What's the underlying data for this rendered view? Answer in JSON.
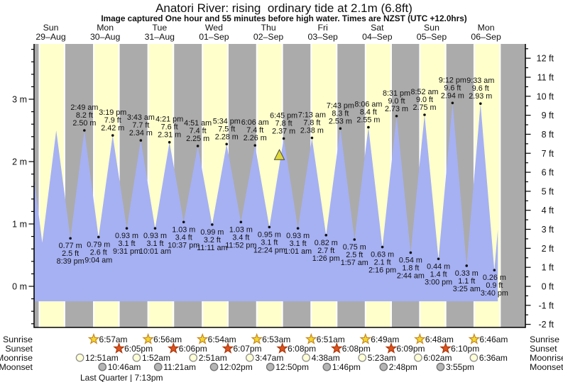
{
  "title": "Anatori River: rising  ordinary tide at 2.1m (6.8ft)",
  "subtitle": "Image captured One hour and 55 minutes before high water. Times are NZST (UTC +12.0hrs)",
  "moon_phase": "Last Quarter | 7:13pm",
  "colors": {
    "night_band": "#ababab",
    "day_band": "#ffffcc",
    "tide_fill": "#a6b1f3",
    "date_red": "#ff3333",
    "sunrise_star": "#f2d832",
    "sunrise_star_edge": "#c8881e",
    "sunset_star": "#e2511a",
    "sunset_star_edge": "#a83a10",
    "moonrise_fill": "#ffffd6",
    "moonrise_edge": "#8f8f8f",
    "moonset_fill": "#b5b5b5",
    "moonset_edge": "#6f6f6f",
    "marker_yellow": "#e0d838"
  },
  "y_axis": {
    "left_ticks": [
      {
        "value": 3,
        "label": "3 m"
      },
      {
        "value": 2,
        "label": "2 m"
      },
      {
        "value": 1,
        "label": "1 m"
      },
      {
        "value": 0,
        "label": "0 m"
      }
    ],
    "right_ticks": [
      {
        "value": 12,
        "label": "12 ft"
      },
      {
        "value": 11,
        "label": "11 ft"
      },
      {
        "value": 10,
        "label": "10 ft"
      },
      {
        "value": 9,
        "label": "9 ft"
      },
      {
        "value": 8,
        "label": "8 ft"
      },
      {
        "value": 7,
        "label": "7 ft"
      },
      {
        "value": 6,
        "label": "6 ft"
      },
      {
        "value": 5,
        "label": "5 ft"
      },
      {
        "value": 4,
        "label": "4 ft"
      },
      {
        "value": 3,
        "label": "3 ft"
      },
      {
        "value": 2,
        "label": "2 ft"
      },
      {
        "value": 1,
        "label": "1 ft"
      },
      {
        "value": 0,
        "label": "0 ft"
      },
      {
        "value": -1,
        "label": "-1 ft"
      },
      {
        "value": -2,
        "label": "-2 ft"
      }
    ]
  },
  "chart_data": {
    "type": "area",
    "x_days": [
      {
        "name": "Sun",
        "date": "29–Aug"
      },
      {
        "name": "Mon",
        "date": "30–Aug"
      },
      {
        "name": "Tue",
        "date": "31–Aug"
      },
      {
        "name": "Wed",
        "date": "01–Sep"
      },
      {
        "name": "Thu",
        "date": "02–Sep"
      },
      {
        "name": "Fri",
        "date": "03–Sep"
      },
      {
        "name": "Sat",
        "date": "04–Sep"
      },
      {
        "name": "Sun",
        "date": "05–Sep"
      },
      {
        "name": "Mon",
        "date": "06–Sep"
      }
    ],
    "y_range_m": [
      -0.65,
      3.9
    ],
    "area_base_m": -0.24,
    "tide_events": [
      {
        "day": 0,
        "time": "4:38 am",
        "height_m": 1.74,
        "type": "edge",
        "labeled": false
      },
      {
        "day": 0,
        "time": "8:14 am",
        "height_m": 0.7,
        "type": "low",
        "labeled": false
      },
      {
        "day": 0,
        "time": "2:24 pm",
        "height_m": 2.5,
        "type": "high",
        "labeled": false
      },
      {
        "day": 0,
        "time": "8:39 pm",
        "height_m": 0.77,
        "height_ft": 2.5,
        "type": "low",
        "labeled": true
      },
      {
        "day": 1,
        "time": "2:49 am",
        "height_m": 2.5,
        "height_ft": 8.2,
        "type": "high",
        "labeled": true
      },
      {
        "day": 1,
        "time": "9:04 am",
        "height_m": 0.79,
        "height_ft": 2.6,
        "type": "low",
        "labeled": true
      },
      {
        "day": 1,
        "time": "3:19 pm",
        "height_m": 2.42,
        "height_ft": 7.9,
        "type": "high",
        "labeled": true
      },
      {
        "day": 1,
        "time": "9:31 pm",
        "height_m": 0.93,
        "height_ft": 3.1,
        "type": "low",
        "labeled": true
      },
      {
        "day": 2,
        "time": "3:43 am",
        "height_m": 2.34,
        "height_ft": 7.7,
        "type": "high",
        "labeled": true
      },
      {
        "day": 2,
        "time": "10:01 am",
        "height_m": 0.93,
        "height_ft": 3.1,
        "type": "low",
        "labeled": true
      },
      {
        "day": 2,
        "time": "4:21 pm",
        "height_m": 2.31,
        "height_ft": 7.6,
        "type": "high",
        "labeled": true
      },
      {
        "day": 2,
        "time": "10:37 pm",
        "height_m": 1.03,
        "height_ft": 3.4,
        "type": "low",
        "labeled": true
      },
      {
        "day": 3,
        "time": "4:51 am",
        "height_m": 2.25,
        "height_ft": 7.4,
        "type": "high",
        "labeled": true
      },
      {
        "day": 3,
        "time": "11:11 am",
        "height_m": 0.99,
        "height_ft": 3.2,
        "type": "low",
        "labeled": true
      },
      {
        "day": 3,
        "time": "5:34 pm",
        "height_m": 2.28,
        "height_ft": 7.5,
        "type": "high",
        "labeled": true
      },
      {
        "day": 3,
        "time": "11:52 pm",
        "height_m": 1.03,
        "height_ft": 3.4,
        "type": "low",
        "labeled": true
      },
      {
        "day": 4,
        "time": "6:06 am",
        "height_m": 2.26,
        "height_ft": 7.4,
        "type": "high",
        "labeled": true
      },
      {
        "day": 4,
        "time": "12:24 pm",
        "height_m": 0.95,
        "height_ft": 3.1,
        "type": "low",
        "labeled": true
      },
      {
        "day": 4,
        "time": "6:45 pm",
        "height_m": 2.37,
        "height_ft": 7.8,
        "type": "high",
        "labeled": true
      },
      {
        "day": 5,
        "time": "1:01 am",
        "height_m": 0.93,
        "height_ft": 3.1,
        "type": "low",
        "labeled": true
      },
      {
        "day": 5,
        "time": "7:13 am",
        "height_m": 2.38,
        "height_ft": 7.8,
        "type": "high",
        "labeled": true
      },
      {
        "day": 5,
        "time": "1:26 pm",
        "height_m": 0.82,
        "height_ft": 2.7,
        "type": "low",
        "labeled": true
      },
      {
        "day": 5,
        "time": "7:43 pm",
        "height_m": 2.53,
        "height_ft": 8.3,
        "type": "high",
        "labeled": true
      },
      {
        "day": 6,
        "time": "1:57 am",
        "height_m": 0.75,
        "height_ft": 2.5,
        "type": "low",
        "labeled": true
      },
      {
        "day": 6,
        "time": "8:06 am",
        "height_m": 2.55,
        "height_ft": 8.4,
        "type": "high",
        "labeled": true
      },
      {
        "day": 6,
        "time": "2:16 pm",
        "height_m": 0.63,
        "height_ft": 2.1,
        "type": "low",
        "labeled": true
      },
      {
        "day": 6,
        "time": "8:31 pm",
        "height_m": 2.73,
        "height_ft": 9.0,
        "type": "high",
        "labeled": true
      },
      {
        "day": 7,
        "time": "2:44 am",
        "height_m": 0.54,
        "height_ft": 1.8,
        "type": "low",
        "labeled": true
      },
      {
        "day": 7,
        "time": "8:52 am",
        "height_m": 2.75,
        "height_ft": 9.0,
        "type": "high",
        "labeled": true
      },
      {
        "day": 7,
        "time": "3:00 pm",
        "height_m": 0.44,
        "height_ft": 1.4,
        "type": "low",
        "labeled": true
      },
      {
        "day": 7,
        "time": "9:12 pm",
        "height_m": 2.94,
        "height_ft": 9.6,
        "type": "high",
        "labeled": true
      },
      {
        "day": 8,
        "time": "3:25 am",
        "height_m": 0.33,
        "height_ft": 1.1,
        "type": "low",
        "labeled": true
      },
      {
        "day": 8,
        "time": "9:33 am",
        "height_m": 2.93,
        "height_ft": 9.6,
        "type": "high",
        "labeled": true
      },
      {
        "day": 8,
        "time": "3:40 pm",
        "height_m": 0.26,
        "height_ft": 0.9,
        "type": "low",
        "labeled": true
      },
      {
        "day": 8,
        "time": "5:12 pm",
        "height_m": 0.91,
        "type": "edge",
        "labeled": false
      }
    ],
    "current_time_marker": {
      "day": 4,
      "time": "4:50 pm",
      "height_m": 2.1
    }
  },
  "astro": {
    "rows": [
      {
        "name": "Sunrise",
        "icon": "sunrise-star",
        "entries": [
          {
            "day": 1,
            "time": "6:57am"
          },
          {
            "day": 2,
            "time": "6:56am"
          },
          {
            "day": 3,
            "time": "6:54am"
          },
          {
            "day": 4,
            "time": "6:53am"
          },
          {
            "day": 5,
            "time": "6:51am"
          },
          {
            "day": 6,
            "time": "6:49am"
          },
          {
            "day": 7,
            "time": "6:48am"
          },
          {
            "day": 8,
            "time": "6:46am"
          }
        ]
      },
      {
        "name": "Sunset",
        "icon": "sunset-star",
        "entries": [
          {
            "day": 1,
            "time": "6:05pm"
          },
          {
            "day": 2,
            "time": "6:06pm"
          },
          {
            "day": 3,
            "time": "6:07pm"
          },
          {
            "day": 4,
            "time": "6:08pm"
          },
          {
            "day": 5,
            "time": "6:08pm"
          },
          {
            "day": 6,
            "time": "6:09pm"
          },
          {
            "day": 7,
            "time": "6:10pm"
          }
        ]
      },
      {
        "name": "Moonrise",
        "icon": "moonrise-circle",
        "entries": [
          {
            "day": 1,
            "time": "12:51am"
          },
          {
            "day": 2,
            "time": "1:52am"
          },
          {
            "day": 3,
            "time": "2:51am"
          },
          {
            "day": 4,
            "time": "3:47am"
          },
          {
            "day": 5,
            "time": "4:38am"
          },
          {
            "day": 6,
            "time": "5:23am"
          },
          {
            "day": 7,
            "time": "6:02am"
          },
          {
            "day": 8,
            "time": "6:36am"
          }
        ]
      },
      {
        "name": "Moonset",
        "icon": "moonset-circle",
        "entries": [
          {
            "day": 1,
            "time": "10:46am"
          },
          {
            "day": 2,
            "time": "11:21am"
          },
          {
            "day": 3,
            "time": "12:02pm"
          },
          {
            "day": 4,
            "time": "12:50pm"
          },
          {
            "day": 5,
            "time": "1:46pm"
          },
          {
            "day": 6,
            "time": "2:48pm"
          },
          {
            "day": 7,
            "time": "3:55pm"
          }
        ]
      }
    ]
  }
}
